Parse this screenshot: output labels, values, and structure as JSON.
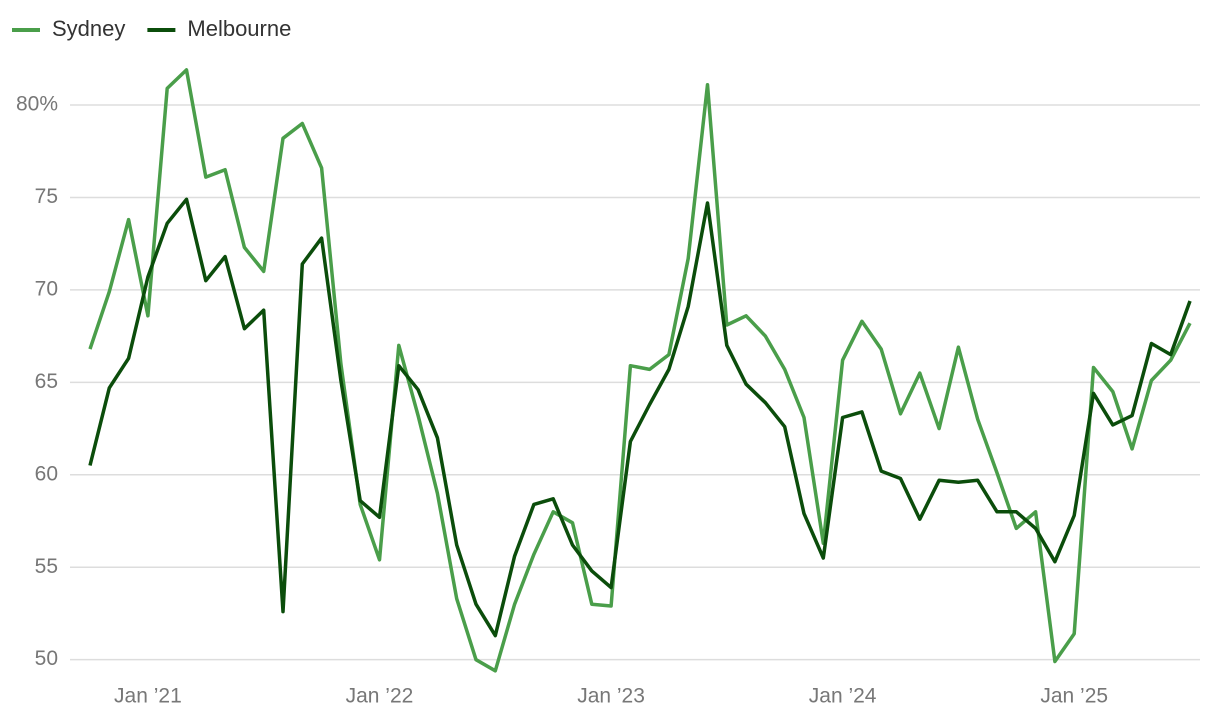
{
  "chart_data": {
    "type": "line",
    "x": [
      "2020-10",
      "2020-11",
      "2020-12",
      "2021-01",
      "2021-02",
      "2021-03",
      "2021-04",
      "2021-05",
      "2021-06",
      "2021-07",
      "2021-08",
      "2021-09",
      "2021-10",
      "2021-11",
      "2021-12",
      "2022-01",
      "2022-02",
      "2022-03",
      "2022-04",
      "2022-05",
      "2022-06",
      "2022-07",
      "2022-08",
      "2022-09",
      "2022-10",
      "2022-11",
      "2022-12",
      "2023-01",
      "2023-02",
      "2023-03",
      "2023-04",
      "2023-05",
      "2023-06",
      "2023-07",
      "2023-08",
      "2023-09",
      "2023-10",
      "2023-11",
      "2023-12",
      "2024-01",
      "2024-02",
      "2024-03",
      "2024-04",
      "2024-05",
      "2024-06",
      "2024-07",
      "2024-08",
      "2024-09",
      "2024-10",
      "2024-11",
      "2024-12",
      "2025-01",
      "2025-02",
      "2025-03",
      "2025-04",
      "2025-05",
      "2025-06",
      "2025-07"
    ],
    "series": [
      {
        "name": "Sydney",
        "color": "#4a9e4a",
        "values": [
          66.8,
          69.9,
          73.8,
          68.6,
          80.9,
          81.9,
          76.1,
          76.5,
          72.3,
          71.0,
          78.2,
          79.0,
          76.6,
          66.0,
          58.4,
          55.4,
          67.0,
          63.2,
          59.0,
          53.3,
          50.0,
          49.4,
          53.0,
          55.7,
          58.0,
          57.4,
          53.0,
          52.9,
          65.9,
          65.7,
          66.5,
          71.7,
          81.1,
          68.1,
          68.6,
          67.5,
          65.7,
          63.1,
          56.3,
          66.2,
          68.3,
          66.8,
          63.3,
          65.5,
          62.5,
          66.9,
          63.0,
          60.1,
          57.1,
          58.0,
          49.9,
          51.4,
          65.8,
          64.5,
          61.4,
          65.1,
          66.2,
          68.2
        ]
      },
      {
        "name": "Melbourne",
        "color": "#0b4d0b",
        "values": [
          60.5,
          64.7,
          66.3,
          70.7,
          73.6,
          74.9,
          70.5,
          71.8,
          67.9,
          68.9,
          52.6,
          71.4,
          72.8,
          65.1,
          58.6,
          57.7,
          65.9,
          64.6,
          62.0,
          56.2,
          53.0,
          51.3,
          55.6,
          58.4,
          58.7,
          56.2,
          54.8,
          53.9,
          61.8,
          63.8,
          65.7,
          69.1,
          74.7,
          67.0,
          64.9,
          63.9,
          62.6,
          57.9,
          55.5,
          63.1,
          63.4,
          60.2,
          59.8,
          57.6,
          59.7,
          59.6,
          59.7,
          58.0,
          58.0,
          57.1,
          55.3,
          57.8,
          64.4,
          62.7,
          63.2,
          67.1,
          66.5,
          69.4
        ]
      }
    ],
    "xticks": [
      {
        "value": "2021-01",
        "label": "Jan ’21"
      },
      {
        "value": "2022-01",
        "label": "Jan ’22"
      },
      {
        "value": "2023-01",
        "label": "Jan ’23"
      },
      {
        "value": "2024-01",
        "label": "Jan ’24"
      },
      {
        "value": "2025-01",
        "label": "Jan ’25"
      }
    ],
    "ylim": [
      48.9,
      83.3
    ],
    "yticks": [
      50,
      55,
      60,
      65,
      70,
      75,
      {
        "value": 80,
        "label": "80%"
      }
    ],
    "grid": true,
    "legend": "top-left"
  }
}
